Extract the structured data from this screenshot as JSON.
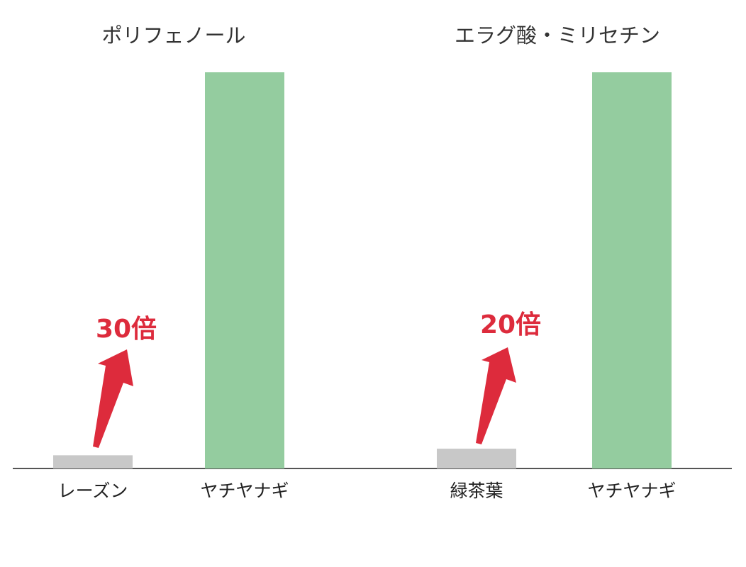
{
  "chart_data": [
    {
      "type": "bar",
      "title": "ポリフェノール",
      "categories": [
        "レーズン",
        "ヤチヤナギ"
      ],
      "values": [
        1,
        30
      ],
      "bar_colors": [
        "#c8c8c8",
        "#94cc9f"
      ],
      "ylim": [
        0,
        30
      ],
      "annotation": {
        "text": "30倍",
        "color": "#dd2b3c"
      }
    },
    {
      "type": "bar",
      "title": "エラグ酸・ミリセチン",
      "categories": [
        "緑茶葉",
        "ヤチヤナギ"
      ],
      "values": [
        1,
        20
      ],
      "bar_colors": [
        "#c8c8c8",
        "#94cc9f"
      ],
      "ylim": [
        0,
        20
      ],
      "annotation": {
        "text": "20倍",
        "color": "#dd2b3c"
      }
    }
  ],
  "axis_color": "#555555"
}
